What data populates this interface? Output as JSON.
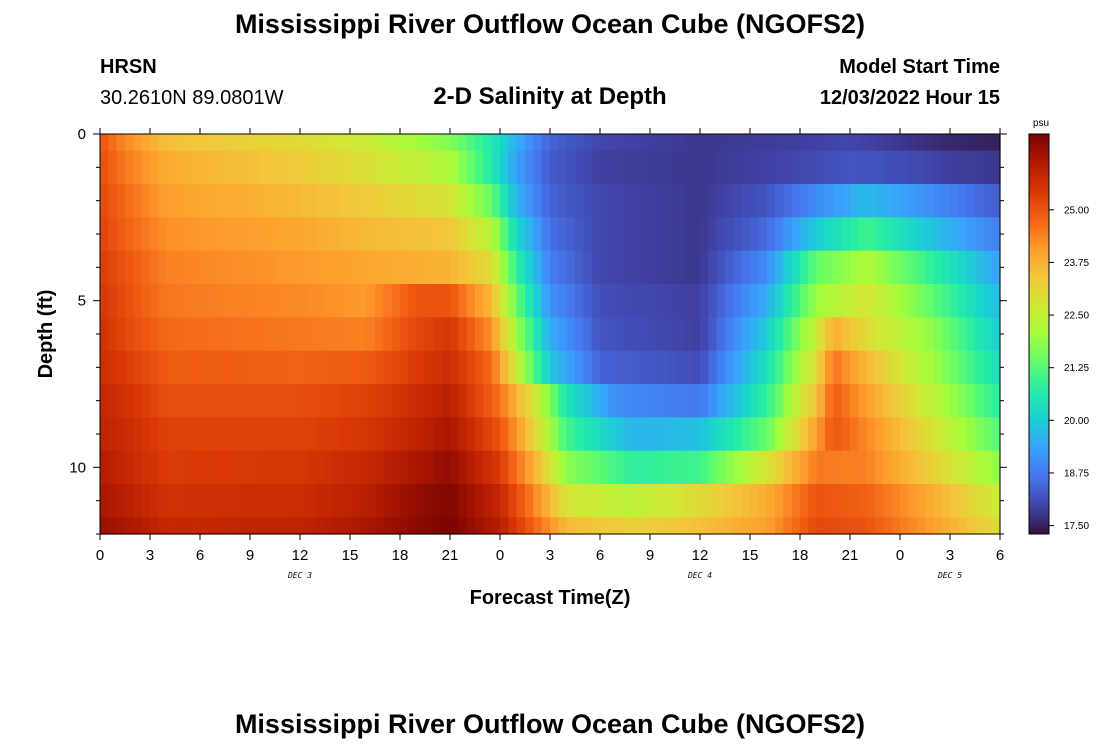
{
  "header": {
    "title": "Mississippi River Outflow Ocean Cube (NGOFS2)",
    "station_name": "HRSN",
    "station_coords": "30.2610N  89.0801W",
    "subtitle": "2-D Salinity at Depth",
    "model_start_label": "Model Start Time",
    "model_start_value": "12/03/2022 Hour 15"
  },
  "footer": {
    "title": "Mississippi River Outflow Ocean Cube (NGOFS2)"
  },
  "chart_data": {
    "type": "heatmap",
    "xlabel": "Forecast Time(Z)",
    "ylabel": "Depth (ft)",
    "x_range_hours": [
      0,
      54
    ],
    "x_tick_labels": [
      "0",
      "3",
      "6",
      "9",
      "12",
      "15",
      "18",
      "21",
      "0",
      "3",
      "6",
      "9",
      "12",
      "15",
      "18",
      "21",
      "0",
      "3",
      "6"
    ],
    "day_labels": [
      {
        "text": "DEC 3",
        "at_hour": 12
      },
      {
        "text": "DEC 4",
        "at_hour": 36
      },
      {
        "text": "DEC 5",
        "at_hour": 51
      }
    ],
    "y_range_ft": [
      0,
      12
    ],
    "y_tick_labels": [
      "0",
      "5",
      "10"
    ],
    "colorbar": {
      "unit": "psu",
      "range": [
        17.3,
        26.8
      ],
      "tick_labels": [
        "25.00",
        "23.75",
        "22.50",
        "21.25",
        "20.00",
        "18.75",
        "17.50"
      ],
      "colors": [
        "#30123b",
        "#4145ab",
        "#4675ed",
        "#39a2fc",
        "#1bcfd4",
        "#24eca6",
        "#61fc6c",
        "#a4fc3b",
        "#d1e834",
        "#f3c63a",
        "#fe9b2d",
        "#f36315",
        "#d93806",
        "#b11901",
        "#7a0402"
      ]
    },
    "depth_levels_ft": [
      0,
      1,
      2,
      3,
      4,
      5,
      6,
      7,
      8,
      9,
      10,
      11,
      12
    ],
    "salinity_keyframes": [
      {
        "x": [
          0,
          1.5,
          4,
          12,
          16,
          21,
          23.5,
          25,
          27,
          30,
          36,
          42,
          45,
          48,
          51,
          54
        ],
        "y": [
          25.0,
          24.3,
          23.5,
          23.0,
          22.6,
          21.7,
          20.6,
          19.5,
          18.4,
          18.0,
          17.8,
          17.9,
          18.0,
          17.8,
          17.6,
          17.5
        ]
      },
      {
        "x": [
          0,
          1.5,
          4,
          12,
          16,
          21,
          23.5,
          25,
          27,
          30,
          36,
          42,
          45,
          48,
          51,
          54
        ],
        "y": [
          25.1,
          24.5,
          23.8,
          23.3,
          22.9,
          22.2,
          20.6,
          19.3,
          18.3,
          17.9,
          17.8,
          18.0,
          18.2,
          18.1,
          17.9,
          17.8
        ]
      },
      {
        "x": [
          0,
          1.5,
          4,
          12,
          16,
          21,
          23.5,
          25,
          27,
          30,
          36,
          40,
          43,
          46,
          50,
          54
        ],
        "y": [
          25.2,
          24.7,
          24.0,
          23.6,
          23.3,
          22.8,
          21.4,
          19.6,
          18.4,
          18.0,
          17.8,
          18.2,
          19.0,
          19.7,
          19.0,
          18.3
        ]
      },
      {
        "x": [
          0,
          1.5,
          4,
          12,
          16,
          21,
          23.5,
          25,
          27,
          30,
          36,
          40,
          43,
          46,
          50,
          54
        ],
        "y": [
          25.3,
          24.8,
          24.2,
          23.9,
          23.6,
          23.4,
          22.3,
          20.2,
          18.6,
          18.0,
          17.8,
          18.5,
          20.0,
          21.0,
          19.8,
          18.8
        ]
      },
      {
        "x": [
          0,
          1.5,
          4,
          12,
          16,
          21,
          23.5,
          25,
          27,
          30,
          36,
          40,
          43,
          46,
          50,
          54
        ],
        "y": [
          25.4,
          25.0,
          24.4,
          24.1,
          23.9,
          23.7,
          23.0,
          20.8,
          18.8,
          18.0,
          17.8,
          19.0,
          21.4,
          22.2,
          20.8,
          19.3
        ]
      },
      {
        "x": [
          0,
          1.5,
          4,
          12,
          16,
          19,
          21,
          23.5,
          25,
          27,
          30,
          36,
          40,
          43,
          46,
          50,
          54
        ],
        "y": [
          25.5,
          25.1,
          24.5,
          24.3,
          24.1,
          25.0,
          25.0,
          23.6,
          21.4,
          19.1,
          18.1,
          17.9,
          19.5,
          22.0,
          22.8,
          21.3,
          19.7
        ]
      },
      {
        "x": [
          0,
          1.5,
          4,
          12,
          16,
          19,
          21,
          23.5,
          25,
          27,
          30,
          36,
          40,
          43,
          44,
          46,
          50,
          54
        ],
        "y": [
          25.6,
          25.2,
          24.7,
          24.5,
          24.4,
          25.2,
          25.5,
          24.2,
          22.0,
          19.5,
          18.2,
          17.9,
          20.0,
          22.6,
          23.8,
          23.0,
          21.8,
          20.0
        ]
      },
      {
        "x": [
          0,
          1.5,
          4,
          12,
          16,
          19,
          21,
          23.5,
          25,
          27,
          30,
          36,
          40,
          43,
          44,
          46,
          50,
          54
        ],
        "y": [
          25.7,
          25.4,
          24.9,
          24.8,
          24.9,
          25.4,
          25.7,
          24.7,
          22.6,
          19.9,
          18.4,
          18.1,
          20.4,
          23.0,
          24.6,
          23.6,
          22.0,
          20.3
        ]
      },
      {
        "x": [
          0,
          1.5,
          4,
          12,
          16,
          19,
          21,
          24,
          26,
          28,
          31,
          36,
          40,
          43,
          44,
          46,
          50,
          54
        ],
        "y": [
          25.8,
          25.6,
          25.1,
          25.1,
          25.3,
          25.7,
          26.0,
          24.6,
          22.8,
          20.5,
          19.0,
          18.7,
          20.8,
          23.5,
          24.9,
          24.0,
          22.4,
          20.7
        ]
      },
      {
        "x": [
          0,
          1.5,
          4,
          12,
          16,
          19,
          21,
          24,
          26,
          28,
          32,
          36,
          40,
          43,
          44,
          46,
          50,
          54
        ],
        "y": [
          25.9,
          25.7,
          25.3,
          25.3,
          25.5,
          25.9,
          26.2,
          25.0,
          23.2,
          21.0,
          19.6,
          19.8,
          21.4,
          24.0,
          25.0,
          24.3,
          22.8,
          21.2
        ]
      },
      {
        "x": [
          0,
          1.5,
          4,
          12,
          16,
          19,
          21,
          24,
          26,
          28,
          32,
          36,
          40,
          43,
          46,
          50,
          54
        ],
        "y": [
          26.1,
          25.8,
          25.4,
          25.5,
          25.8,
          26.2,
          26.5,
          25.4,
          23.8,
          21.8,
          20.8,
          21.0,
          22.8,
          24.5,
          24.4,
          23.2,
          21.8
        ]
      },
      {
        "x": [
          0,
          1.5,
          4,
          12,
          16,
          19,
          21,
          24,
          26,
          28,
          32,
          36,
          40,
          43,
          46,
          50,
          54
        ],
        "y": [
          26.2,
          26.0,
          25.6,
          25.7,
          26.0,
          26.5,
          26.7,
          25.8,
          24.4,
          22.8,
          22.4,
          23.0,
          23.8,
          25.0,
          24.8,
          23.8,
          22.6
        ]
      },
      {
        "x": [
          0,
          1.5,
          4,
          12,
          16,
          19,
          21,
          24,
          26,
          28,
          32,
          36,
          40,
          43,
          46,
          50,
          54
        ],
        "y": [
          26.4,
          26.2,
          25.8,
          25.9,
          26.2,
          26.6,
          26.8,
          26.0,
          24.8,
          23.6,
          23.2,
          23.5,
          24.0,
          25.2,
          25.0,
          24.0,
          23.0
        ]
      }
    ]
  }
}
